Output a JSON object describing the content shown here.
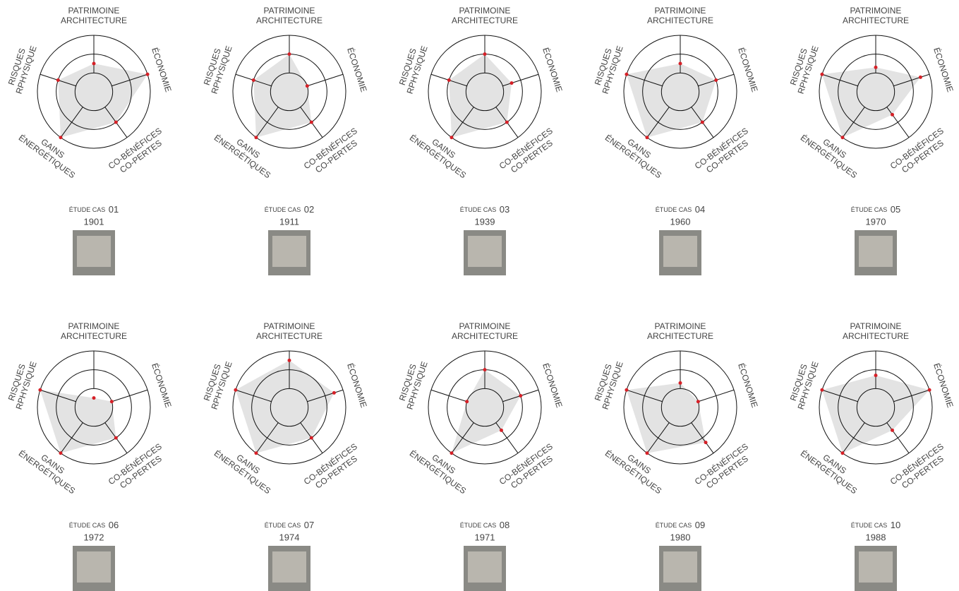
{
  "chart_data": [
    {
      "type": "radar",
      "axes": [
        [
          "PATRIMOINE",
          "ARCHITECTURE"
        ],
        [
          "ÉCONOMIE"
        ],
        [
          "CO-BÉNÉFICES",
          "CO-PERTES"
        ],
        [
          "GAINS",
          "ÉNERGÉTIQUES"
        ],
        [
          "RISQUES",
          "RPHYSIQUE"
        ]
      ],
      "values": [
        1.5,
        3,
        2,
        3,
        2
      ],
      "rlim": [
        0,
        3
      ],
      "rticks": [
        1,
        2,
        3
      ],
      "fill": "#e3e3e3",
      "color": "#d62027",
      "label": "ÉTUDE CAS",
      "number": "01",
      "year": "1901"
    },
    {
      "type": "radar",
      "axes": [
        [
          "PATRIMOINE",
          "ARCHITECTURE"
        ],
        [
          "ÉCONOMIE"
        ],
        [
          "CO-BÉNÉFICES",
          "CO-PERTES"
        ],
        [
          "GAINS",
          "ÉNERGÉTIQUES"
        ],
        [
          "RISQUES",
          "RPHYSIQUE"
        ]
      ],
      "values": [
        2,
        1,
        2,
        3,
        2
      ],
      "rlim": [
        0,
        3
      ],
      "rticks": [
        1,
        2,
        3
      ],
      "fill": "#e3e3e3",
      "color": "#d62027",
      "label": "ÉTUDE CAS",
      "number": "02",
      "year": "1911"
    },
    {
      "type": "radar",
      "axes": [
        [
          "PATRIMOINE",
          "ARCHITECTURE"
        ],
        [
          "ÉCONOMIE"
        ],
        [
          "CO-BÉNÉFICES",
          "CO-PERTES"
        ],
        [
          "GAINS",
          "ÉNERGÉTIQUES"
        ],
        [
          "RISQUES",
          "RPHYSIQUE"
        ]
      ],
      "values": [
        2,
        1.5,
        2,
        3,
        2
      ],
      "rlim": [
        0,
        3
      ],
      "rticks": [
        1,
        2,
        3
      ],
      "fill": "#e3e3e3",
      "color": "#d62027",
      "label": "ÉTUDE CAS",
      "number": "03",
      "year": "1939"
    },
    {
      "type": "radar",
      "axes": [
        [
          "PATRIMOINE",
          "ARCHITECTURE"
        ],
        [
          "ÉCONOMIE"
        ],
        [
          "CO-BÉNÉFICES",
          "CO-PERTES"
        ],
        [
          "GAINS",
          "ÉNERGÉTIQUES"
        ],
        [
          "RISQUES",
          "RPHYSIQUE"
        ]
      ],
      "values": [
        1.5,
        2,
        2,
        3,
        3
      ],
      "rlim": [
        0,
        3
      ],
      "rticks": [
        1,
        2,
        3
      ],
      "fill": "#e3e3e3",
      "color": "#d62027",
      "label": "ÉTUDE CAS",
      "number": "04",
      "year": "1960"
    },
    {
      "type": "radar",
      "axes": [
        [
          "PATRIMOINE",
          "ARCHITECTURE"
        ],
        [
          "ÉCONOMIE"
        ],
        [
          "CO-BÉNÉFICES",
          "CO-PERTES"
        ],
        [
          "GAINS",
          "ÉNERGÉTIQUES"
        ],
        [
          "RISQUES",
          "RPHYSIQUE"
        ]
      ],
      "values": [
        1.3,
        2.5,
        1.5,
        3,
        3
      ],
      "rlim": [
        0,
        3
      ],
      "rticks": [
        1,
        2,
        3
      ],
      "fill": "#e3e3e3",
      "color": "#d62027",
      "label": "ÉTUDE CAS",
      "number": "05",
      "year": "1970"
    },
    {
      "type": "radar",
      "axes": [
        [
          "PATRIMOINE",
          "ARCHITECTURE"
        ],
        [
          "ÉCONOMIE"
        ],
        [
          "CO-BÉNÉFICES",
          "CO-PERTES"
        ],
        [
          "GAINS",
          "ÉNERGÉTIQUES"
        ],
        [
          "RISQUES",
          "RPHYSIQUE"
        ]
      ],
      "values": [
        0.5,
        1,
        2,
        3,
        3
      ],
      "rlim": [
        0,
        3
      ],
      "rticks": [
        1,
        2,
        3
      ],
      "fill": "#e3e3e3",
      "color": "#d62027",
      "label": "ÉTUDE CAS",
      "number": "06",
      "year": "1972"
    },
    {
      "type": "radar",
      "axes": [
        [
          "PATRIMOINE",
          "ARCHITECTURE"
        ],
        [
          "ÉCONOMIE"
        ],
        [
          "CO-BÉNÉFICES",
          "CO-PERTES"
        ],
        [
          "GAINS",
          "ÉNERGÉTIQUES"
        ],
        [
          "RISQUES",
          "RPHYSIQUE"
        ]
      ],
      "values": [
        2.5,
        2.5,
        2,
        3,
        3
      ],
      "rlim": [
        0,
        3
      ],
      "rticks": [
        1,
        2,
        3
      ],
      "fill": "#e3e3e3",
      "color": "#d62027",
      "label": "ÉTUDE CAS",
      "number": "07",
      "year": "1974"
    },
    {
      "type": "radar",
      "axes": [
        [
          "PATRIMOINE",
          "ARCHITECTURE"
        ],
        [
          "ÉCONOMIE"
        ],
        [
          "CO-BÉNÉFICES",
          "CO-PERTES"
        ],
        [
          "GAINS",
          "ÉNERGÉTIQUES"
        ],
        [
          "RISQUES",
          "RPHYSIQUE"
        ]
      ],
      "values": [
        2,
        2,
        1.5,
        3,
        1
      ],
      "rlim": [
        0,
        3
      ],
      "rticks": [
        1,
        2,
        3
      ],
      "fill": "#e3e3e3",
      "color": "#d62027",
      "label": "ÉTUDE CAS",
      "number": "08",
      "year": "1971"
    },
    {
      "type": "radar",
      "axes": [
        [
          "PATRIMOINE",
          "ARCHITECTURE"
        ],
        [
          "ÉCONOMIE"
        ],
        [
          "CO-BÉNÉFICES",
          "CO-PERTES"
        ],
        [
          "GAINS",
          "ÉNERGÉTIQUES"
        ],
        [
          "RISQUES",
          "RPHYSIQUE"
        ]
      ],
      "values": [
        1.3,
        1,
        2.3,
        3,
        3
      ],
      "rlim": [
        0,
        3
      ],
      "rticks": [
        1,
        2,
        3
      ],
      "fill": "#e3e3e3",
      "color": "#d62027",
      "label": "ÉTUDE CAS",
      "number": "09",
      "year": "1980"
    },
    {
      "type": "radar",
      "axes": [
        [
          "PATRIMOINE",
          "ARCHITECTURE"
        ],
        [
          "ÉCONOMIE"
        ],
        [
          "CO-BÉNÉFICES",
          "CO-PERTES"
        ],
        [
          "GAINS",
          "ÉNERGÉTIQUES"
        ],
        [
          "RISQUES",
          "RPHYSIQUE"
        ]
      ],
      "values": [
        1.7,
        3,
        1.5,
        3,
        3
      ],
      "rlim": [
        0,
        3
      ],
      "rticks": [
        1,
        2,
        3
      ],
      "fill": "#e3e3e3",
      "color": "#d62027",
      "label": "ÉTUDE CAS",
      "number": "10",
      "year": "1988"
    }
  ]
}
